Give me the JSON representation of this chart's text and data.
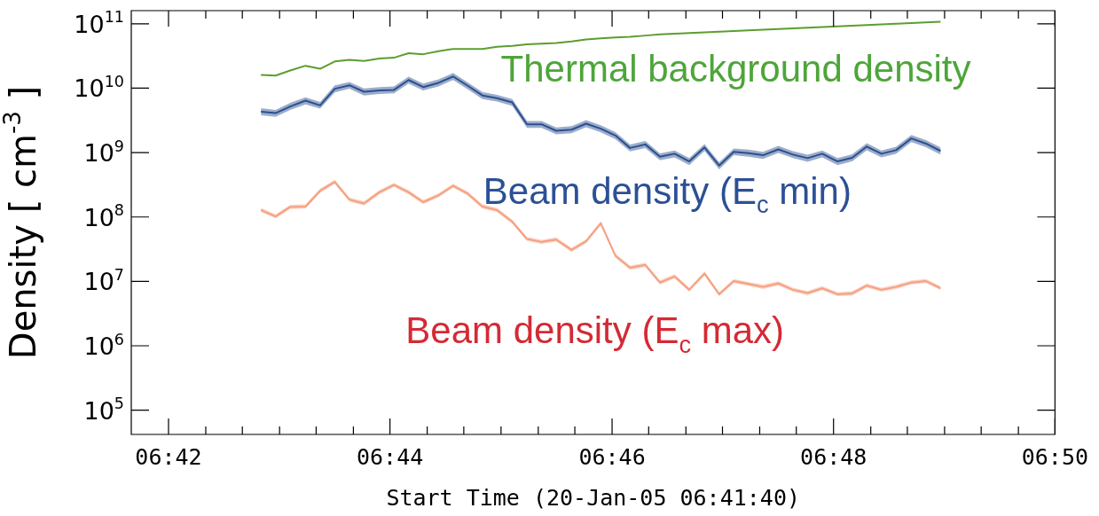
{
  "chart_data": {
    "type": "line",
    "xlabel": "Start Time (20-Jan-05 06:41:40)",
    "ylabel": "Density [ cm$^{-3}$ ]",
    "log": "y",
    "marker": "none",
    "line_style": "solid",
    "x": [
      6.7139,
      6.7161,
      6.7183,
      6.7206,
      6.7228,
      6.725,
      6.7272,
      6.7294,
      6.7317,
      6.7339,
      6.7361,
      6.7383,
      6.7406,
      6.7428,
      6.745,
      6.7472,
      6.7494,
      6.7517,
      6.7539,
      6.7561,
      6.7583,
      6.7606,
      6.7628,
      6.765,
      6.7672,
      6.7694,
      6.7717,
      6.7739,
      6.7761,
      6.7783,
      6.7806,
      6.7828,
      6.785,
      6.7872,
      6.7894,
      6.7917,
      6.7939,
      6.7961,
      6.7983,
      6.8006,
      6.8028,
      6.805,
      6.8072,
      6.8094,
      6.8117,
      6.8139,
      6.8161
    ],
    "xlim": [
      6.6944,
      6.8333
    ],
    "xticks": [
      {
        "value": 6.7,
        "label": "06:42"
      },
      {
        "value": 6.7056,
        "label": null
      },
      {
        "value": 6.7111,
        "label": null
      },
      {
        "value": 6.7167,
        "label": null
      },
      {
        "value": 6.7222,
        "label": null
      },
      {
        "value": 6.7278,
        "label": null
      },
      {
        "value": 6.7333,
        "label": "06:44"
      },
      {
        "value": 6.7389,
        "label": null
      },
      {
        "value": 6.7444,
        "label": null
      },
      {
        "value": 6.75,
        "label": null
      },
      {
        "value": 6.7556,
        "label": null
      },
      {
        "value": 6.7611,
        "label": null
      },
      {
        "value": 6.7667,
        "label": "06:46"
      },
      {
        "value": 6.7722,
        "label": null
      },
      {
        "value": 6.7778,
        "label": null
      },
      {
        "value": 6.7833,
        "label": null
      },
      {
        "value": 6.7889,
        "label": null
      },
      {
        "value": 6.7944,
        "label": null
      },
      {
        "value": 6.8,
        "label": "06:48"
      },
      {
        "value": 6.8056,
        "label": null
      },
      {
        "value": 6.8111,
        "label": null
      },
      {
        "value": 6.8167,
        "label": null
      },
      {
        "value": 6.8222,
        "label": null
      },
      {
        "value": 6.8278,
        "label": null
      },
      {
        "value": 6.8333,
        "label": "06:50"
      }
    ],
    "ylim": [
      42000,
      160000000000
    ],
    "yticks": [
      {
        "value": 100000,
        "label": "10$^{5}$"
      },
      {
        "value": 1000000,
        "label": "10$^{6}$"
      },
      {
        "value": 10000000,
        "label": "10$^{7}$"
      },
      {
        "value": 100000000,
        "label": "10$^{8}$"
      },
      {
        "value": 1000000000,
        "label": "10$^{9}$"
      },
      {
        "value": 10000000000,
        "label": "10$^{10}$"
      },
      {
        "value": 100000000000,
        "label": "10$^{11}$"
      }
    ],
    "grid": false,
    "series": [
      {
        "name": "Thermal background density",
        "color": "#5c9e2e",
        "values": [
          16100000000.0,
          15700000000.0,
          18800000000.0,
          22300000000.0,
          20000000000.0,
          26000000000.0,
          27600000000.0,
          26400000000.0,
          28800000000.0,
          29700000000.0,
          35000000000.0,
          33700000000.0,
          37400000000.0,
          40700000000.0,
          40700000000.0,
          40700000000.0,
          43900000000.0,
          45300000000.0,
          47800000000.0,
          49300000000.0,
          50400000000.0,
          53000000000.0,
          57300000000.0,
          59600000000.0,
          61500000000.0,
          63000000000.0,
          65600000000.0,
          68600000000.0,
          70300000000.0,
          71900000000.0,
          73600000000.0,
          75500000000.0,
          77300000000.0,
          79100000000.0,
          81100000000.0,
          83000000000.0,
          85100000000.0,
          87100000000.0,
          89100000000.0,
          91400000000.0,
          93500000000.0,
          95700000000.0,
          98200000000.0,
          100000000000.0,
          103000000000.0,
          105000000000.0,
          108000000000.0
        ]
      },
      {
        "name": "Beam density (E$_{c}$ min)",
        "color": "#2b4f8f",
        "values": [
          4300000000.0,
          4100000000.0,
          5200000000.0,
          6400000000.0,
          5400000000.0,
          9800000000.0,
          11100000000.0,
          8800000000.0,
          9200000000.0,
          9400000000.0,
          13400000000.0,
          10400000000.0,
          12100000000.0,
          15200000000.0,
          10900000000.0,
          7700000000.0,
          7000000000.0,
          6000000000.0,
          2750000000.0,
          2750000000.0,
          2180000000.0,
          2270000000.0,
          2810000000.0,
          2350000000.0,
          1840000000.0,
          1180000000.0,
          1340000000.0,
          860000000.0,
          960000000.0,
          730000000.0,
          1200000000.0,
          630000000.0,
          1030000000.0,
          980000000.0,
          910000000.0,
          1120000000.0,
          930000000.0,
          820000000.0,
          960000000.0,
          730000000.0,
          830000000.0,
          1240000000.0,
          960000000.0,
          1090000000.0,
          1660000000.0,
          1380000000.0,
          1060000000.0
        ],
        "lower": [
          3800000000.0,
          3600000000.0,
          4600000000.0,
          5600000000.0,
          4800000000.0,
          8600000000.0,
          9800000000.0,
          7700000000.0,
          8100000000.0,
          8300000000.0,
          11800000000.0,
          9200000000.0,
          10600000000.0,
          13400000000.0,
          9600000000.0,
          6800000000.0,
          6200000000.0,
          5300000000.0,
          2420000000.0,
          2420000000.0,
          1920000000.0,
          2000000000.0,
          2470000000.0,
          2070000000.0,
          1620000000.0,
          1040000000.0,
          1180000000.0,
          760000000.0,
          840000000.0,
          640000000.0,
          1060000000.0,
          550000000.0,
          910000000.0,
          860000000.0,
          800000000.0,
          990000000.0,
          820000000.0,
          720000000.0,
          840000000.0,
          640000000.0,
          730000000.0,
          1090000000.0,
          840000000.0,
          960000000.0,
          1460000000.0,
          1210000000.0,
          930000000.0
        ],
        "upper": [
          4900000000.0,
          4600000000.0,
          5900000000.0,
          7200000000.0,
          6100000000.0,
          11100000000.0,
          12500000000.0,
          9900000000.0,
          10400000000.0,
          10600000000.0,
          15100000000.0,
          11800000000.0,
          13700000000.0,
          17200000000.0,
          12300000000.0,
          8700000000.0,
          7900000000.0,
          6800000000.0,
          3100000000.0,
          3100000000.0,
          2460000000.0,
          2570000000.0,
          3180000000.0,
          2660000000.0,
          2080000000.0,
          1330000000.0,
          1510000000.0,
          970000000.0,
          1080000000.0,
          820000000.0,
          1360000000.0,
          710000000.0,
          1160000000.0,
          1110000000.0,
          1030000000.0,
          1270000000.0,
          1050000000.0,
          930000000.0,
          1080000000.0,
          820000000.0,
          940000000.0,
          1400000000.0,
          1080000000.0,
          1230000000.0,
          1880000000.0,
          1560000000.0,
          1200000000.0
        ]
      },
      {
        "name": "Beam density (E$_{c}$ max)",
        "color": "#f5a080",
        "values": [
          128000000.0,
          102000000.0,
          143000000.0,
          145000000.0,
          255000000.0,
          350000000.0,
          186000000.0,
          162000000.0,
          242000000.0,
          315000000.0,
          242000000.0,
          170000000.0,
          217000000.0,
          305000000.0,
          230000000.0,
          145000000.0,
          128000000.0,
          84000000.0,
          45500000.0,
          41000000.0,
          44500000.0,
          30800000.0,
          42000000.0,
          80000000.0,
          25000000.0,
          16300000.0,
          18000000.0,
          9600000.0,
          11900000.0,
          7400000.0,
          13200000.0,
          6300000.0,
          10100000.0,
          9100000.0,
          8200000.0,
          9300000.0,
          7400000.0,
          6600000.0,
          7800000.0,
          6300000.0,
          6500000.0,
          8600000.0,
          7400000.0,
          8200000.0,
          9600000.0,
          10100000.0,
          7800000.0
        ],
        "lower": [
          119000000.0,
          95000000.0,
          133000000.0,
          135000000.0,
          237000000.0,
          326000000.0,
          173000000.0,
          151000000.0,
          225000000.0,
          293000000.0,
          225000000.0,
          158000000.0,
          202000000.0,
          284000000.0,
          214000000.0,
          135000000.0,
          119000000.0,
          78000000.0,
          42300000.0,
          38100000.0,
          41400000.0,
          28600000.0,
          39100000.0,
          74000000.0,
          23300000.0,
          15200000.0,
          16700000.0,
          8900000.0,
          11100000.0,
          6900000.0,
          12300000.0,
          5900000.0,
          9400000.0,
          8500000.0,
          7600000.0,
          8600000.0,
          6900000.0,
          6100000.0,
          7300000.0,
          5900000.0,
          6000000.0,
          8000000.0,
          6900000.0,
          7600000.0,
          8900000.0,
          9400000.0,
          7300000.0
        ],
        "upper": [
          138000000.0,
          110000000.0,
          154000000.0,
          157000000.0,
          275000000.0,
          378000000.0,
          201000000.0,
          175000000.0,
          261000000.0,
          340000000.0,
          261000000.0,
          184000000.0,
          234000000.0,
          329000000.0,
          248000000.0,
          157000000.0,
          138000000.0,
          91000000.0,
          49100000.0,
          44300000.0,
          48100000.0,
          33300000.0,
          45400000.0,
          86000000.0,
          27000000.0,
          17600000.0,
          19400000.0,
          10400000.0,
          12900000.0,
          8000000.0,
          14300000.0,
          6800000.0,
          10900000.0,
          9800000.0,
          8900000.0,
          10000000.0,
          8000000.0,
          7100000.0,
          8400000.0,
          6800000.0,
          7000000.0,
          9300000.0,
          8000000.0,
          8900000.0,
          10400000.0,
          10900000.0,
          8400000.0
        ]
      }
    ]
  }
}
